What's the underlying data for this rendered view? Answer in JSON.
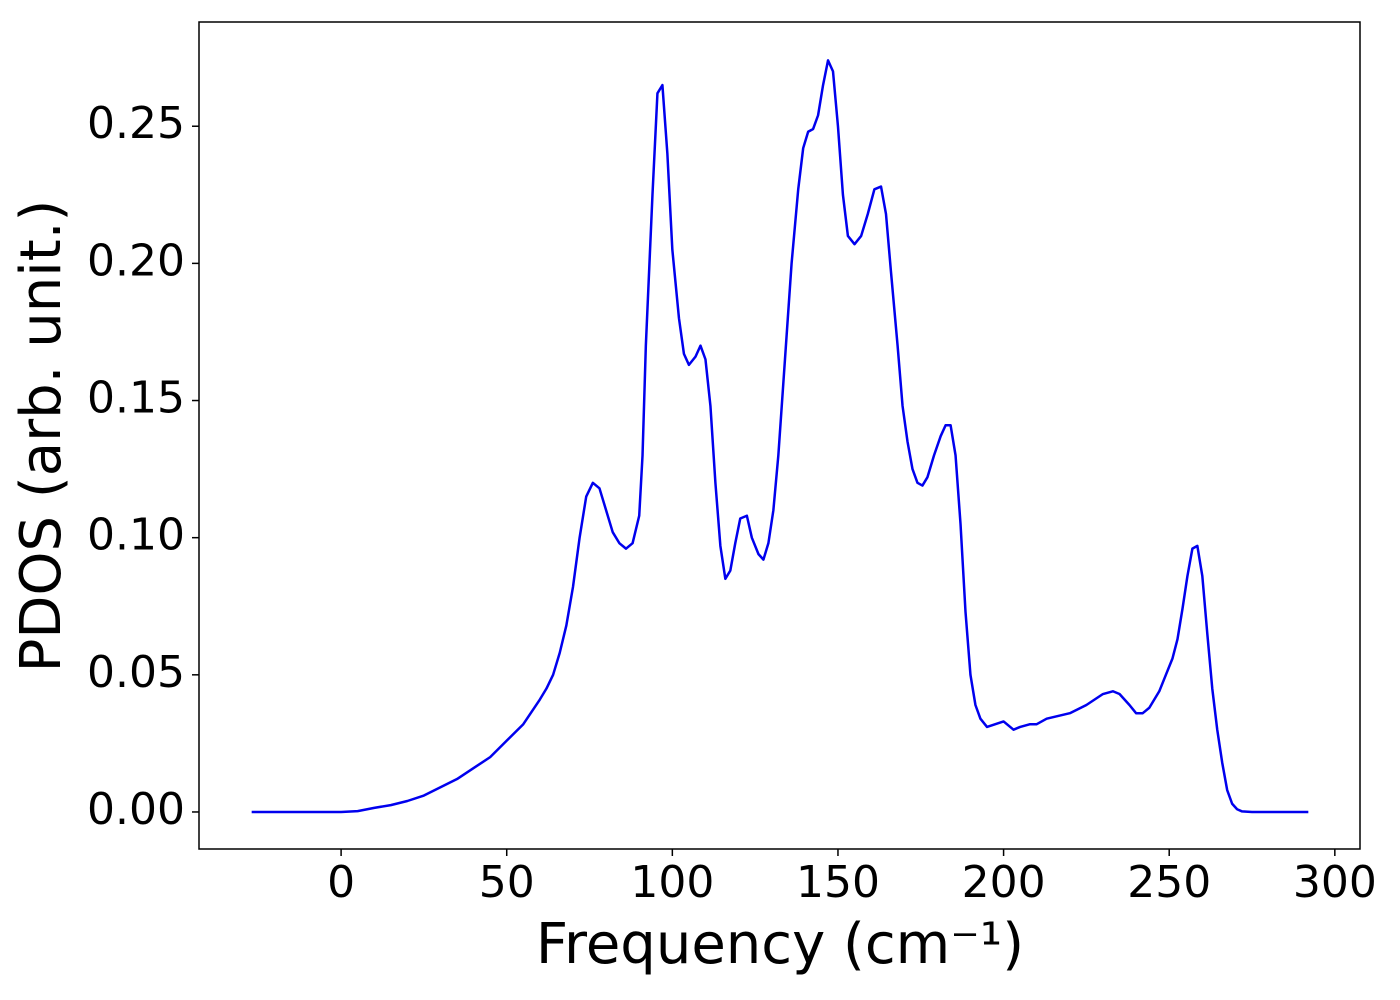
{
  "chart_data": {
    "type": "line",
    "x_label": "Frequency (cm⁻¹)",
    "y_label": "PDOS (arb. unit.)",
    "series": [
      {
        "color": "#0000ee",
        "x": [
          -27,
          -10,
          0,
          5,
          10,
          15,
          20,
          25,
          30,
          35,
          40,
          45,
          50,
          55,
          60,
          62,
          64,
          66,
          68,
          70,
          72,
          74,
          76,
          78,
          80,
          82,
          84,
          86,
          88,
          90,
          91,
          92,
          94,
          95.5,
          97,
          98.5,
          100,
          102,
          103.5,
          105,
          107,
          108.5,
          110,
          111.5,
          113,
          114.5,
          116,
          117.5,
          119,
          120.5,
          122.5,
          124,
          126,
          127.5,
          129,
          130.5,
          132,
          134,
          136,
          138,
          139.5,
          141,
          142.5,
          144,
          145.5,
          147,
          148.5,
          150,
          151.5,
          153,
          155,
          157,
          159,
          161,
          163,
          164.5,
          166,
          168,
          169.5,
          171,
          172.5,
          174,
          175.5,
          177,
          179,
          181,
          182.5,
          184,
          185.5,
          187,
          188.5,
          190,
          191.5,
          193,
          195,
          200,
          203,
          205,
          208,
          210,
          213,
          220,
          225,
          230,
          233,
          235,
          238,
          240,
          242,
          244,
          247,
          249,
          251,
          252.5,
          254,
          255.5,
          257,
          258.5,
          260,
          261.5,
          263,
          264.5,
          266,
          267.5,
          269,
          270.5,
          272,
          275,
          292
        ],
        "values": [
          0,
          0,
          0,
          0.0003,
          0.0015,
          0.0025,
          0.004,
          0.006,
          0.009,
          0.012,
          0.016,
          0.02,
          0.026,
          0.032,
          0.041,
          0.045,
          0.05,
          0.058,
          0.068,
          0.082,
          0.1,
          0.115,
          0.12,
          0.118,
          0.11,
          0.102,
          0.098,
          0.096,
          0.098,
          0.108,
          0.13,
          0.17,
          0.225,
          0.262,
          0.265,
          0.24,
          0.205,
          0.18,
          0.167,
          0.163,
          0.166,
          0.17,
          0.165,
          0.148,
          0.12,
          0.097,
          0.085,
          0.088,
          0.098,
          0.107,
          0.108,
          0.1,
          0.094,
          0.092,
          0.098,
          0.11,
          0.13,
          0.165,
          0.2,
          0.227,
          0.242,
          0.248,
          0.249,
          0.254,
          0.265,
          0.274,
          0.27,
          0.25,
          0.225,
          0.21,
          0.207,
          0.21,
          0.218,
          0.227,
          0.228,
          0.218,
          0.197,
          0.17,
          0.148,
          0.135,
          0.125,
          0.12,
          0.119,
          0.122,
          0.13,
          0.137,
          0.141,
          0.141,
          0.13,
          0.105,
          0.073,
          0.05,
          0.039,
          0.034,
          0.031,
          0.033,
          0.03,
          0.031,
          0.032,
          0.032,
          0.034,
          0.036,
          0.039,
          0.043,
          0.044,
          0.043,
          0.039,
          0.036,
          0.036,
          0.038,
          0.044,
          0.05,
          0.056,
          0.063,
          0.074,
          0.086,
          0.096,
          0.097,
          0.086,
          0.065,
          0.045,
          0.03,
          0.018,
          0.008,
          0.003,
          0.001,
          0.0002,
          0,
          0
        ]
      }
    ],
    "xlim": [
      -42.9,
      307.6
    ],
    "xticks": [
      0,
      50,
      100,
      150,
      200,
      250,
      300
    ],
    "ylim": [
      -0.0135,
      0.288
    ],
    "yticks": [
      {
        "value": 0,
        "label": "0.00"
      },
      {
        "value": 0.05,
        "label": "0.05"
      },
      {
        "value": 0.1,
        "label": "0.10"
      },
      {
        "value": 0.15,
        "label": "0.15"
      },
      {
        "value": 0.2,
        "label": "0.20"
      },
      {
        "value": 0.25,
        "label": "0.25"
      }
    ],
    "grid": false
  }
}
